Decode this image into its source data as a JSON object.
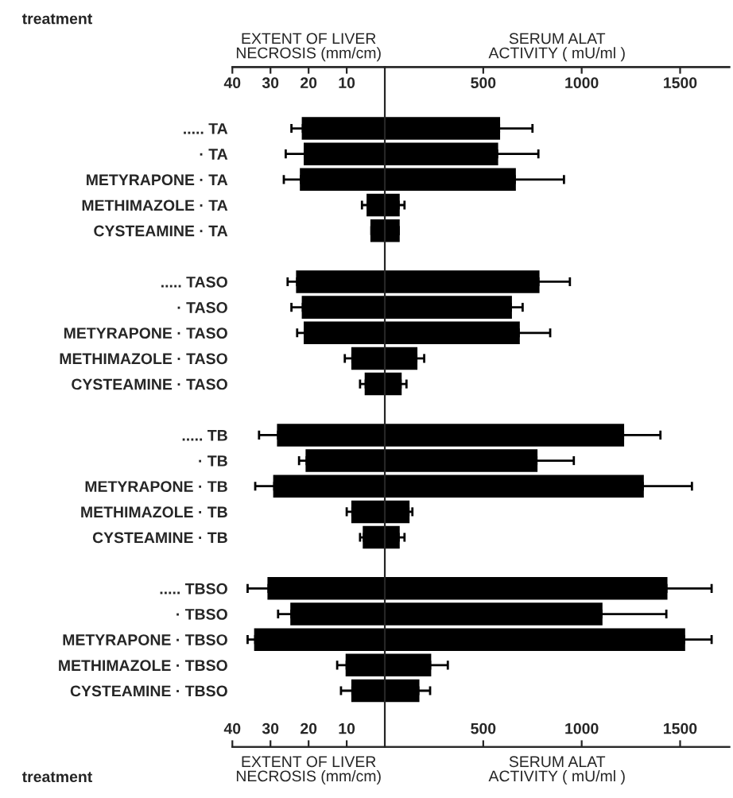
{
  "chart_data": [
    {
      "type": "bar",
      "orientation": "horizontal",
      "ylabel": "treatment",
      "xlabel": "EXTENT OF LIVER\nNECROSIS (mm/cm)",
      "x2label": "EXTENT OF LIVER\nNECROSIS (mm/cm)",
      "color": "#000000",
      "categories": [
        "..... TA",
        "· TA",
        "METYRAPONE · TA",
        "METHIMAZOLE · TA",
        "CYSTEAMINE · TA",
        null,
        "..... TASO",
        "· TASO",
        "METYRAPONE · TASO",
        "METHIMAZOLE · TASO",
        "CYSTEAMINE · TASO",
        null,
        "..... TB",
        "· TB",
        "METYRAPONE · TB",
        "METHIMAZOLE · TB",
        "CYSTEAMINE · TB",
        null,
        "..... TBSO",
        "· TBSO",
        "METYRAPONE · TBSO",
        "METHIMAZOLE · TBSO",
        "CYSTEAMINE · TBSO"
      ],
      "values": [
        21.5,
        21,
        22,
        4.5,
        3.5,
        null,
        23,
        21.5,
        21,
        8.5,
        5,
        null,
        28,
        20.5,
        29,
        8.5,
        5.5,
        null,
        30.5,
        24.5,
        34,
        10,
        8.5
      ],
      "errors": [
        3,
        5,
        4.5,
        1.5,
        null,
        null,
        2.5,
        3,
        2,
        2,
        1.5,
        null,
        5,
        2,
        5,
        1.5,
        1,
        null,
        5.5,
        3.5,
        2,
        2.5,
        3
      ],
      "xlim": [
        40,
        0
      ],
      "xticks": [
        40,
        30,
        20,
        10
      ],
      "x2lim": [
        40,
        0
      ],
      "x2ticks": [
        40,
        30,
        20,
        10
      ]
    },
    {
      "type": "bar",
      "orientation": "horizontal",
      "xlabel": "SERUM ALAT\nACTIVITY ( mU/ml )",
      "x2label": "SERUM ALAT\nACTIVITY ( mU/ml )",
      "color": "#000000",
      "values": [
        580,
        570,
        660,
        70,
        70,
        null,
        780,
        640,
        680,
        160,
        80,
        null,
        1210,
        770,
        1310,
        120,
        70,
        null,
        1430,
        1100,
        1520,
        230,
        170
      ],
      "errors": [
        170,
        210,
        250,
        30,
        null,
        null,
        160,
        60,
        160,
        40,
        30,
        null,
        190,
        190,
        250,
        20,
        30,
        null,
        230,
        330,
        140,
        90,
        60
      ],
      "xlim": [
        0,
        1750
      ],
      "xticks": [
        500,
        1000,
        1500
      ],
      "x2lim": [
        0,
        1750
      ],
      "x2ticks": [
        500,
        1000,
        1500
      ]
    }
  ]
}
